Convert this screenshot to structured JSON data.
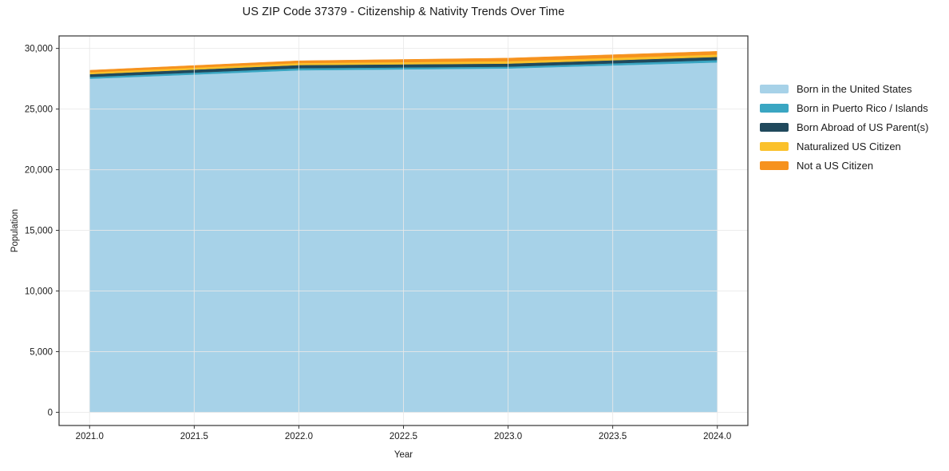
{
  "title": "US ZIP Code 37379 - Citizenship & Nativity Trends Over Time",
  "chart_data": {
    "type": "area",
    "stacked": true,
    "title": "US ZIP Code 37379 - Citizenship & Nativity Trends Over Time",
    "xlabel": "Year",
    "ylabel": "Population",
    "x": [
      2021,
      2022,
      2023,
      2024
    ],
    "series": [
      {
        "name": "Born in the United States",
        "color": "#a7d2e8",
        "values": [
          27500,
          28200,
          28350,
          28850
        ]
      },
      {
        "name": "Born in Puerto Rico / Islands",
        "color": "#3aa6c2",
        "values": [
          150,
          170,
          150,
          190
        ]
      },
      {
        "name": "Born Abroad of US Parent(s)",
        "color": "#20495c",
        "values": [
          230,
          260,
          250,
          260
        ]
      },
      {
        "name": "Naturalized US Citizen",
        "color": "#fbc12b",
        "values": [
          160,
          170,
          200,
          200
        ]
      },
      {
        "name": "Not a US Citizen",
        "color": "#f6921e",
        "values": [
          160,
          180,
          250,
          260
        ]
      }
    ],
    "xlim": [
      2020.854,
      2024.146
    ],
    "ylim": [
      -1090,
      31030
    ],
    "xticks": {
      "values": [
        2021.0,
        2021.5,
        2022.0,
        2022.5,
        2023.0,
        2023.5,
        2024.0
      ],
      "labels": [
        "2021.0",
        "2021.5",
        "2022.0",
        "2022.5",
        "2023.0",
        "2023.5",
        "2024.0"
      ]
    },
    "yticks": {
      "values": [
        0,
        5000,
        10000,
        15000,
        20000,
        25000,
        30000
      ],
      "labels": [
        "0",
        "5,000",
        "10,000",
        "15,000",
        "20,000",
        "25,000",
        "30,000"
      ]
    },
    "grid": true,
    "legend_position": "outside-right",
    "colors": {
      "grid": "#e9e9e9",
      "spine": "#333333",
      "tick": "#333333",
      "text": "#1a1a1a"
    }
  }
}
